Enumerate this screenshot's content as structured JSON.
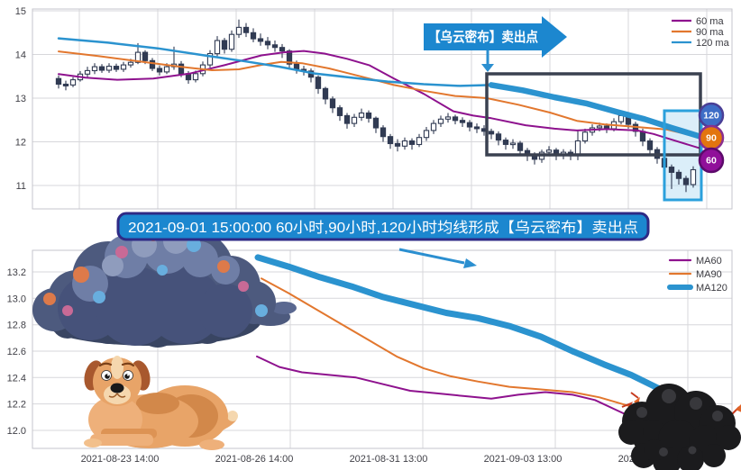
{
  "banners": {
    "top_arrow_label": "【乌云密布】卖出点",
    "signal_text": "2021-09-01 15:00:00 60小时,90小时,120小时均线形成【乌云密布】卖出点"
  },
  "colors": {
    "ma60": "#8e128e",
    "ma90": "#e2772e",
    "ma120": "#2b93cf",
    "candle": "#313b53",
    "grid": "#d7d7db",
    "banner_fill": "#1c87cf",
    "banner_border": "#2e2a85",
    "sell_box": "#3a4150",
    "highlight_border": "#2ba0dc",
    "highlight_fill": "rgba(176,217,242,0.45)",
    "arrow": "#2b8fd0"
  },
  "chart_data": [
    {
      "type": "candlestick",
      "title": "",
      "xlabel": "",
      "ylabel": "",
      "grid": true,
      "legend_position": "upper right",
      "y_ticks": [
        15,
        14,
        13,
        12,
        11
      ],
      "y_tick_labels": [
        "15",
        "14",
        "13",
        "12",
        "11"
      ],
      "ylim": [
        10.45,
        15.05
      ],
      "x_start": 65,
      "x_step": 8,
      "candles": [
        [
          13.45,
          13.32,
          13.22,
          13.52
        ],
        [
          13.32,
          13.28,
          13.18,
          13.4
        ],
        [
          13.3,
          13.42,
          13.25,
          13.48
        ],
        [
          13.42,
          13.55,
          13.38,
          13.62
        ],
        [
          13.55,
          13.63,
          13.48,
          13.72
        ],
        [
          13.63,
          13.72,
          13.55,
          13.8
        ],
        [
          13.72,
          13.64,
          13.58,
          13.78
        ],
        [
          13.64,
          13.73,
          13.58,
          13.8
        ],
        [
          13.73,
          13.66,
          13.6,
          13.79
        ],
        [
          13.66,
          13.76,
          13.6,
          13.83
        ],
        [
          13.76,
          13.82,
          13.7,
          13.9
        ],
        [
          13.82,
          14.05,
          13.78,
          14.26
        ],
        [
          14.05,
          13.86,
          13.78,
          14.1
        ],
        [
          13.86,
          13.68,
          13.62,
          13.92
        ],
        [
          13.68,
          13.6,
          13.52,
          13.75
        ],
        [
          13.6,
          13.72,
          13.55,
          13.8
        ],
        [
          13.72,
          13.78,
          13.65,
          14.18
        ],
        [
          13.78,
          13.56,
          13.48,
          13.85
        ],
        [
          13.56,
          13.42,
          13.33,
          13.62
        ],
        [
          13.42,
          13.56,
          13.36,
          13.63
        ],
        [
          13.56,
          13.76,
          13.5,
          13.84
        ],
        [
          13.76,
          14.02,
          13.7,
          14.1
        ],
        [
          14.02,
          14.32,
          13.96,
          14.42
        ],
        [
          14.32,
          14.12,
          14.02,
          14.38
        ],
        [
          14.12,
          14.46,
          14.06,
          14.55
        ],
        [
          14.46,
          14.62,
          14.38,
          14.8
        ],
        [
          14.62,
          14.5,
          14.4,
          14.72
        ],
        [
          14.5,
          14.36,
          14.28,
          14.6
        ],
        [
          14.36,
          14.3,
          14.2,
          14.48
        ],
        [
          14.3,
          14.22,
          14.12,
          14.4
        ],
        [
          14.22,
          14.16,
          14.06,
          14.32
        ],
        [
          14.16,
          14.08,
          13.92,
          14.24
        ],
        [
          14.08,
          13.78,
          13.68,
          14.12
        ],
        [
          13.78,
          13.66,
          13.56,
          13.86
        ],
        [
          13.66,
          13.62,
          13.52,
          13.74
        ],
        [
          13.62,
          13.48,
          13.36,
          13.68
        ],
        [
          13.48,
          13.22,
          13.1,
          13.52
        ],
        [
          13.22,
          12.98,
          12.86,
          13.26
        ],
        [
          12.98,
          12.78,
          12.66,
          13.04
        ],
        [
          12.78,
          12.6,
          12.48,
          12.84
        ],
        [
          12.6,
          12.42,
          12.3,
          12.66
        ],
        [
          12.42,
          12.56,
          12.34,
          12.64
        ],
        [
          12.56,
          12.66,
          12.48,
          12.76
        ],
        [
          12.66,
          12.54,
          12.44,
          12.72
        ],
        [
          12.54,
          12.32,
          12.2,
          12.58
        ],
        [
          12.32,
          12.12,
          12.0,
          12.38
        ],
        [
          12.12,
          11.96,
          11.84,
          12.18
        ],
        [
          11.96,
          11.9,
          11.78,
          12.06
        ],
        [
          11.9,
          12.02,
          11.82,
          12.1
        ],
        [
          12.02,
          11.94,
          11.82,
          12.08
        ],
        [
          11.94,
          12.1,
          11.88,
          12.18
        ],
        [
          12.1,
          12.26,
          12.02,
          12.34
        ],
        [
          12.26,
          12.42,
          12.18,
          12.5
        ],
        [
          12.42,
          12.52,
          12.34,
          12.6
        ],
        [
          12.52,
          12.57,
          12.44,
          12.66
        ],
        [
          12.57,
          12.49,
          12.4,
          12.62
        ],
        [
          12.49,
          12.44,
          12.34,
          12.56
        ],
        [
          12.44,
          12.34,
          12.24,
          12.5
        ],
        [
          12.34,
          12.3,
          12.2,
          12.42
        ],
        [
          12.3,
          12.24,
          12.14,
          12.38
        ],
        [
          12.24,
          12.18,
          12.06,
          12.3
        ],
        [
          12.18,
          12.04,
          11.92,
          12.24
        ],
        [
          12.04,
          11.94,
          11.82,
          12.1
        ],
        [
          11.94,
          11.97,
          11.84,
          12.06
        ],
        [
          11.97,
          11.8,
          11.68,
          12.02
        ],
        [
          11.8,
          11.7,
          11.56,
          11.86
        ],
        [
          11.7,
          11.6,
          11.48,
          11.76
        ],
        [
          11.6,
          11.76,
          11.52,
          11.82
        ],
        [
          11.76,
          11.81,
          11.68,
          11.9
        ],
        [
          11.81,
          11.69,
          11.58,
          11.86
        ],
        [
          11.69,
          11.76,
          11.6,
          11.83
        ],
        [
          11.76,
          11.68,
          11.58,
          11.82
        ],
        [
          11.68,
          12.02,
          11.58,
          12.26
        ],
        [
          12.02,
          12.22,
          11.96,
          12.3
        ],
        [
          12.22,
          12.32,
          12.14,
          12.4
        ],
        [
          12.32,
          12.36,
          12.24,
          12.44
        ],
        [
          12.36,
          12.3,
          12.2,
          12.42
        ],
        [
          12.3,
          12.46,
          12.24,
          12.54
        ],
        [
          12.46,
          12.6,
          12.4,
          12.71
        ],
        [
          12.6,
          12.4,
          12.3,
          12.66
        ],
        [
          12.4,
          12.24,
          12.12,
          12.46
        ],
        [
          12.24,
          12.02,
          11.9,
          12.3
        ],
        [
          12.02,
          11.82,
          11.7,
          12.08
        ],
        [
          11.82,
          11.62,
          11.5,
          11.88
        ],
        [
          11.62,
          11.42,
          11.28,
          11.68
        ],
        [
          11.42,
          11.3,
          10.92,
          11.48
        ],
        [
          11.3,
          11.16,
          11.02,
          11.36
        ],
        [
          11.16,
          11.02,
          10.85,
          11.22
        ],
        [
          11.02,
          11.36,
          10.95,
          11.44
        ]
      ],
      "series": [
        {
          "name": "60 ma",
          "color": "#8e128e",
          "width": 2,
          "in_legend": true,
          "points": [
            [
              65,
              13.55
            ],
            [
              95,
              13.47
            ],
            [
              130,
              13.42
            ],
            [
              170,
              13.45
            ],
            [
              210,
              13.56
            ],
            [
              250,
              13.76
            ],
            [
              290,
              13.98
            ],
            [
              315,
              14.05
            ],
            [
              337,
              14.08
            ],
            [
              360,
              14.02
            ],
            [
              385,
              13.9
            ],
            [
              410,
              13.75
            ],
            [
              437,
              13.45
            ],
            [
              470,
              13.1
            ],
            [
              503,
              12.7
            ],
            [
              525,
              12.6
            ],
            [
              545,
              12.54
            ],
            [
              583,
              12.38
            ],
            [
              615,
              12.3
            ],
            [
              640,
              12.26
            ],
            [
              673,
              12.29
            ],
            [
              707,
              12.26
            ],
            [
              725,
              12.18
            ],
            [
              745,
              12.05
            ],
            [
              777,
              11.85
            ]
          ]
        },
        {
          "name": "90 ma",
          "color": "#e2772e",
          "width": 2,
          "in_legend": true,
          "points": [
            [
              65,
              14.07
            ],
            [
              110,
              13.96
            ],
            [
              155,
              13.84
            ],
            [
              200,
              13.72
            ],
            [
              235,
              13.64
            ],
            [
              265,
              13.66
            ],
            [
              290,
              13.76
            ],
            [
              312,
              13.83
            ],
            [
              335,
              13.8
            ],
            [
              365,
              13.68
            ],
            [
              400,
              13.5
            ],
            [
              437,
              13.3
            ],
            [
              470,
              13.17
            ],
            [
              505,
              13.05
            ],
            [
              540,
              13.0
            ],
            [
              575,
              12.85
            ],
            [
              610,
              12.67
            ],
            [
              640,
              12.48
            ],
            [
              670,
              12.4
            ],
            [
              700,
              12.35
            ],
            [
              740,
              12.28
            ],
            [
              777,
              12.1
            ]
          ]
        },
        {
          "name": "120 ma",
          "color": "#2b93cf",
          "width": 2.5,
          "in_legend": true,
          "points": [
            [
              65,
              14.37
            ],
            [
              120,
              14.27
            ],
            [
              175,
              14.14
            ],
            [
              230,
              13.97
            ],
            [
              270,
              13.85
            ],
            [
              310,
              13.72
            ],
            [
              350,
              13.56
            ],
            [
              390,
              13.47
            ],
            [
              430,
              13.38
            ],
            [
              470,
              13.32
            ],
            [
              510,
              13.28
            ],
            [
              545,
              13.3
            ]
          ]
        },
        {
          "name": "120 ma highlight",
          "color": "#2b93cf",
          "width": 6.5,
          "in_legend": false,
          "points": [
            [
              545,
              13.3
            ],
            [
              580,
              13.18
            ],
            [
              615,
              13.02
            ],
            [
              650,
              12.88
            ],
            [
              685,
              12.68
            ],
            [
              715,
              12.52
            ],
            [
              745,
              12.32
            ],
            [
              777,
              12.12
            ]
          ]
        }
      ],
      "legend": [
        "60 ma",
        "90 ma",
        "120 ma"
      ],
      "badges": [
        {
          "label": "120",
          "fill": "#3e6dc6",
          "ring": "#4a3f96"
        },
        {
          "label": "90",
          "fill": "#e2750f",
          "ring": "#8a2f8f"
        },
        {
          "label": "60",
          "fill": "#90109a",
          "ring": "#5d0a6b"
        }
      ]
    },
    {
      "type": "line",
      "title": "",
      "xlabel": "",
      "ylabel": "",
      "grid": true,
      "legend_position": "upper right",
      "y_ticks": [
        13.2,
        13.0,
        12.8,
        12.6,
        12.4,
        12.2,
        12.0
      ],
      "y_tick_labels": [
        "13.2",
        "13.0",
        "12.8",
        "12.6",
        "12.4",
        "12.2",
        "12.0"
      ],
      "ylim": [
        11.86,
        13.36
      ],
      "x_labels": [
        "2021-08-23 14:00",
        "2021-08-26 14:00",
        "2021-08-31 13:00",
        "2021-09-03 13:00",
        "2021-09-09 13:00"
      ],
      "series": [
        {
          "name": "MA60",
          "color": "#8e128e",
          "width": 2,
          "in_legend": true,
          "points": [
            [
              285,
              12.56
            ],
            [
              310,
              12.48
            ],
            [
              335,
              12.44
            ],
            [
              365,
              12.42
            ],
            [
              395,
              12.4
            ],
            [
              425,
              12.35
            ],
            [
              455,
              12.3
            ],
            [
              485,
              12.28
            ],
            [
              515,
              12.26
            ],
            [
              545,
              12.24
            ],
            [
              575,
              12.27
            ],
            [
              605,
              12.29
            ],
            [
              635,
              12.27
            ],
            [
              660,
              12.23
            ],
            [
              685,
              12.15
            ],
            [
              710,
              12.07
            ],
            [
              735,
              12.01
            ],
            [
              760,
              11.97
            ],
            [
              790,
              11.92
            ]
          ]
        },
        {
          "name": "MA90",
          "color": "#e2772e",
          "width": 2,
          "in_legend": true,
          "points": [
            [
              290,
              13.15
            ],
            [
              320,
              13.04
            ],
            [
              350,
              12.92
            ],
            [
              380,
              12.8
            ],
            [
              410,
              12.68
            ],
            [
              440,
              12.56
            ],
            [
              470,
              12.47
            ],
            [
              500,
              12.41
            ],
            [
              530,
              12.37
            ],
            [
              565,
              12.33
            ],
            [
              600,
              12.31
            ],
            [
              635,
              12.29
            ],
            [
              665,
              12.25
            ],
            [
              695,
              12.19
            ],
            [
              725,
              12.15
            ],
            [
              755,
              12.09
            ],
            [
              790,
              12.0
            ]
          ]
        },
        {
          "name": "MA120",
          "color": "#2b93cf",
          "width": 7,
          "in_legend": true,
          "points": [
            [
              286,
              13.31
            ],
            [
              320,
              13.24
            ],
            [
              355,
              13.16
            ],
            [
              390,
              13.09
            ],
            [
              425,
              13.01
            ],
            [
              460,
              12.95
            ],
            [
              495,
              12.89
            ],
            [
              530,
              12.85
            ],
            [
              565,
              12.79
            ],
            [
              600,
              12.71
            ],
            [
              635,
              12.6
            ],
            [
              670,
              12.5
            ],
            [
              700,
              12.42
            ],
            [
              730,
              12.32
            ],
            [
              750,
              12.27
            ],
            [
              772,
              12.21
            ]
          ]
        }
      ],
      "legend": [
        "MA60",
        "MA90",
        "MA120"
      ]
    }
  ]
}
